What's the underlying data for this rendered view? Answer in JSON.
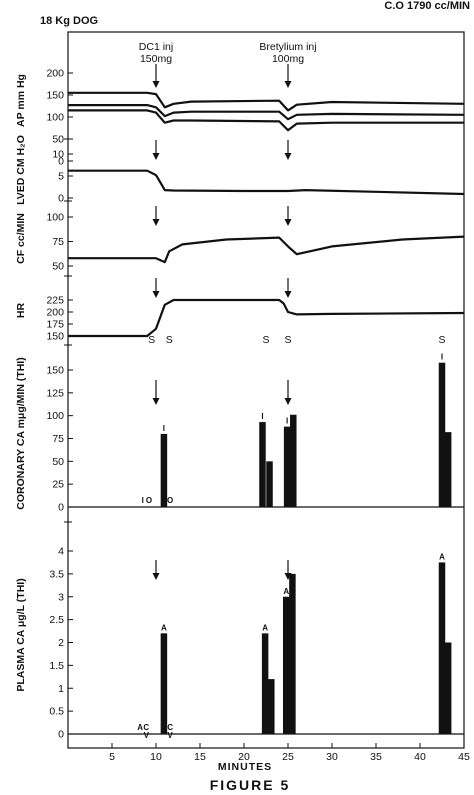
{
  "header": {
    "subject": "18 Kg DOG",
    "cardiac_output": "C.O 1790 cc/MIN"
  },
  "figure_title": "FIGURE 5",
  "chart_data": {
    "type": "line",
    "x_axis": {
      "label": "MINUTES",
      "range": [
        0,
        45
      ],
      "ticks": [
        5,
        10,
        15,
        20,
        25,
        30,
        35,
        40,
        45
      ]
    },
    "events": [
      {
        "name": "DC1 inj",
        "line1": "DC1 inj",
        "line2": "150mg",
        "x": 10
      },
      {
        "name": "Bretylium inj",
        "line1": "Bretylium inj",
        "line2": "100mg",
        "x": 25
      }
    ],
    "panels": [
      {
        "name": "ap",
        "label": "AP mm Hg",
        "type": "line",
        "ylim": [
          0,
          230
        ],
        "yticks": [
          0,
          50,
          100,
          150,
          200
        ],
        "series": [
          {
            "points": [
              [
                0,
                155
              ],
              [
                9,
                155
              ],
              [
                10,
                152
              ],
              [
                11,
                122
              ],
              [
                12,
                130
              ],
              [
                14,
                135
              ],
              [
                24,
                137
              ],
              [
                25,
                115
              ],
              [
                26,
                128
              ],
              [
                30,
                134
              ],
              [
                45,
                130
              ]
            ]
          },
          {
            "points": [
              [
                0,
                127
              ],
              [
                9,
                127
              ],
              [
                10,
                122
              ],
              [
                11,
                102
              ],
              [
                12,
                110
              ],
              [
                14,
                112
              ],
              [
                24,
                112
              ],
              [
                25,
                95
              ],
              [
                26,
                105
              ],
              [
                30,
                107
              ],
              [
                45,
                105
              ]
            ]
          },
          {
            "points": [
              [
                0,
                115
              ],
              [
                9,
                115
              ],
              [
                10,
                110
              ],
              [
                11,
                87
              ],
              [
                12,
                92
              ],
              [
                14,
                92
              ],
              [
                24,
                90
              ],
              [
                25,
                70
              ],
              [
                26,
                85
              ],
              [
                30,
                87
              ],
              [
                45,
                87
              ]
            ]
          }
        ]
      },
      {
        "name": "lved",
        "label": "LVED CM H₂O",
        "type": "line",
        "ylim": [
          0,
          11
        ],
        "yticks": [
          0,
          5,
          10
        ],
        "series": [
          {
            "points": [
              [
                0,
                6.2
              ],
              [
                9,
                6.2
              ],
              [
                10,
                5.2
              ],
              [
                11,
                1.8
              ],
              [
                12,
                1.7
              ],
              [
                20,
                1.6
              ],
              [
                24,
                1.6
              ],
              [
                25,
                1.6
              ],
              [
                27,
                1.8
              ],
              [
                35,
                1.4
              ],
              [
                45,
                0.9
              ]
            ]
          }
        ]
      },
      {
        "name": "cf",
        "label": "CF cc/MIN",
        "type": "line",
        "ylim": [
          40,
          105
        ],
        "yticks": [
          50,
          75,
          100
        ],
        "series": [
          {
            "points": [
              [
                0,
                58
              ],
              [
                9,
                58
              ],
              [
                10,
                58
              ],
              [
                11,
                54
              ],
              [
                11.5,
                65
              ],
              [
                13,
                72
              ],
              [
                18,
                77
              ],
              [
                24,
                79
              ],
              [
                25,
                70
              ],
              [
                26,
                62
              ],
              [
                30,
                70
              ],
              [
                38,
                77
              ],
              [
                45,
                80
              ]
            ]
          }
        ]
      },
      {
        "name": "hr",
        "label": "HR",
        "type": "line",
        "ylim": [
          140,
          240
        ],
        "yticks": [
          150,
          175,
          200,
          225
        ],
        "series": [
          {
            "points": [
              [
                0,
                150
              ],
              [
                9,
                150
              ],
              [
                10,
                165
              ],
              [
                11,
                215
              ],
              [
                12,
                225
              ],
              [
                20,
                225
              ],
              [
                24,
                225
              ],
              [
                24.5,
                218
              ],
              [
                25,
                200
              ],
              [
                26,
                195
              ],
              [
                30,
                196
              ],
              [
                45,
                198
              ]
            ]
          }
        ]
      },
      {
        "name": "coronary",
        "label": "CORONARY CA mμg/MIN (THI)",
        "type": "bar",
        "ylim": [
          0,
          165
        ],
        "yticks": [
          0,
          25,
          50,
          75,
          100,
          125,
          150
        ],
        "s_markers": [
          {
            "x": 9.5,
            "label": "S"
          },
          {
            "x": 11.5,
            "label": "S"
          },
          {
            "x": 22.5,
            "label": "S"
          },
          {
            "x": 25,
            "label": "S"
          },
          {
            "x": 42.5,
            "label": "S"
          }
        ],
        "bars": [
          {
            "x": 8.5,
            "value": 0,
            "label": "I"
          },
          {
            "x": 9.2,
            "value": 0,
            "label": "O"
          },
          {
            "x": 10.9,
            "value": 80,
            "label": "I"
          },
          {
            "x": 11.6,
            "value": 0,
            "label": "O"
          },
          {
            "x": 22.1,
            "value": 93,
            "label": "I"
          },
          {
            "x": 22.9,
            "value": 50,
            "label": "O"
          },
          {
            "x": 24.9,
            "value": 88,
            "label": "I"
          },
          {
            "x": 25.6,
            "value": 101,
            "label": "O"
          },
          {
            "x": 42.5,
            "value": 158,
            "label": "I"
          },
          {
            "x": 43.2,
            "value": 82,
            "label": "O"
          }
        ]
      },
      {
        "name": "plasma",
        "label": "PLASMA CA μg/L (THI)",
        "type": "bar",
        "ylim": [
          0,
          4.3
        ],
        "yticks": [
          0,
          0.5,
          1.0,
          1.5,
          2.0,
          2.5,
          3.0,
          3.5,
          4.0
        ],
        "bars": [
          {
            "x": 8.2,
            "value": 0,
            "label": "A"
          },
          {
            "x": 8.9,
            "value": 0,
            "label": "CV"
          },
          {
            "x": 10.9,
            "value": 2.2,
            "label": "A"
          },
          {
            "x": 11.6,
            "value": 0,
            "label": "CV"
          },
          {
            "x": 22.4,
            "value": 2.2,
            "label": "A"
          },
          {
            "x": 23.1,
            "value": 1.2,
            "label": "CV"
          },
          {
            "x": 24.8,
            "value": 3.0,
            "label": "A"
          },
          {
            "x": 25.5,
            "value": 3.5,
            "label": "CV"
          },
          {
            "x": 42.5,
            "value": 3.75,
            "label": "A"
          },
          {
            "x": 43.2,
            "value": 2.0,
            "label": "CV"
          }
        ]
      }
    ]
  }
}
